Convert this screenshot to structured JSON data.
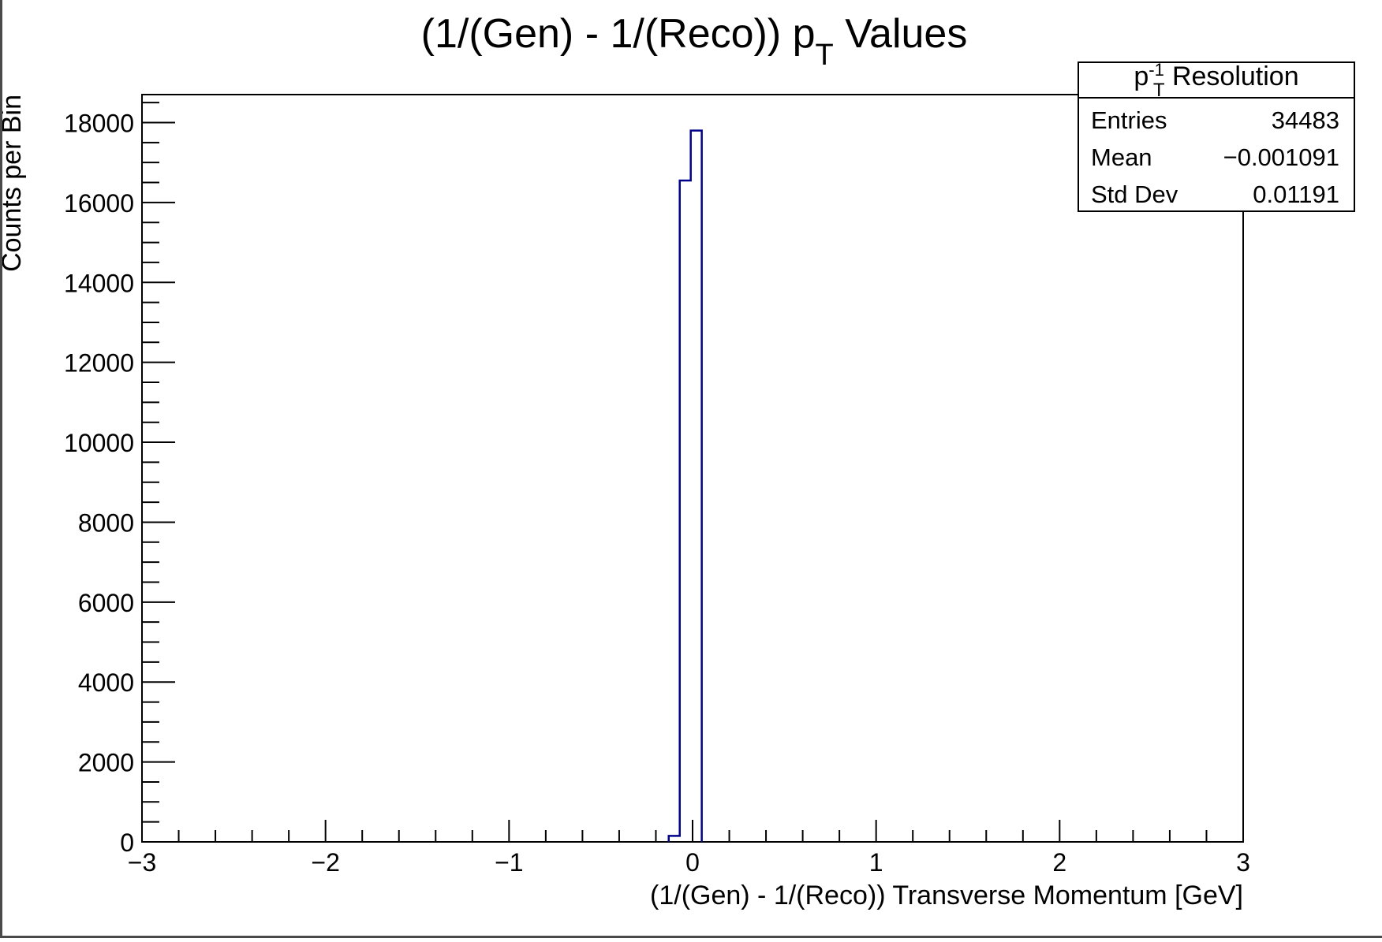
{
  "chart_data": {
    "type": "histogram",
    "title_main": "(1/(Gen) - 1/(Reco)) p",
    "title_sub": "T",
    "title_tail": " Values",
    "xlabel": "(1/(Gen) - 1/(Reco)) Transverse Momentum [GeV]",
    "ylabel": "Counts per Bin",
    "xlim": [
      -3,
      3
    ],
    "ylim": [
      0,
      18700
    ],
    "x_major_ticks": [
      -3,
      -2,
      -1,
      0,
      1,
      2,
      3
    ],
    "x_tick_labels": [
      "−3",
      "−2",
      "−1",
      "0",
      "1",
      "2",
      "3"
    ],
    "y_major_ticks": [
      0,
      2000,
      4000,
      6000,
      8000,
      10000,
      12000,
      14000,
      16000,
      18000
    ],
    "y_tick_labels": [
      "0",
      "2000",
      "4000",
      "6000",
      "8000",
      "10000",
      "12000",
      "14000",
      "16000",
      "18000"
    ],
    "bin_width": 0.06,
    "bins": [
      {
        "x0": -0.13,
        "x1": -0.07,
        "count": 150
      },
      {
        "x0": -0.07,
        "x1": -0.01,
        "count": 16550
      },
      {
        "x0": -0.01,
        "x1": 0.05,
        "count": 17800
      }
    ],
    "line_color": "#00008b",
    "stats_box": {
      "name_main": "p",
      "name_sub": "T",
      "name_sup": "-1",
      "name_tail": " Resolution",
      "rows": [
        {
          "label": "Entries",
          "value": "34483"
        },
        {
          "label": "Mean",
          "value": "−0.001091"
        },
        {
          "label": "Std Dev",
          "value": "0.01191"
        }
      ]
    }
  }
}
